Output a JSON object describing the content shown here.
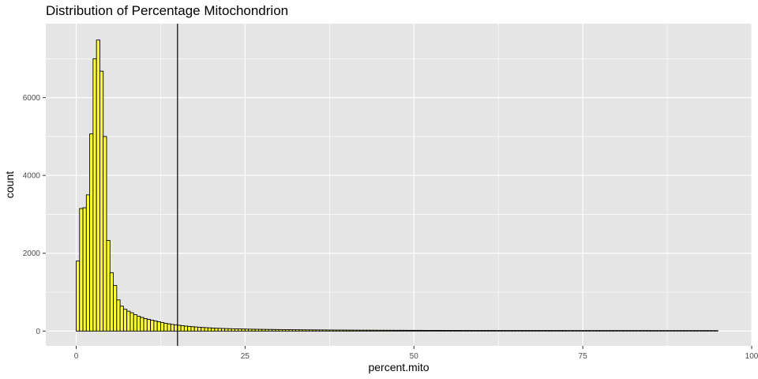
{
  "chart_data": {
    "type": "bar",
    "title": "Distribution of Percentage Mitochondrion",
    "xlabel": "percent.mito",
    "ylabel": "count",
    "xlim": [
      -4.5,
      100
    ],
    "ylim": [
      -380,
      7900
    ],
    "x_ticks": [
      0,
      25,
      50,
      75,
      100
    ],
    "x_tick_labels": [
      "0",
      "25",
      "50",
      "75",
      "100"
    ],
    "y_ticks": [
      0,
      2000,
      4000,
      6000
    ],
    "y_tick_labels": [
      "0",
      "2000",
      "4000",
      "6000"
    ],
    "bin_width": 0.5,
    "bins_start": [
      0,
      0.5,
      1,
      1.5,
      2,
      2.5,
      3,
      3.5,
      4,
      4.5,
      5,
      5.5,
      6,
      6.5,
      7,
      7.5,
      8,
      8.5,
      9,
      9.5,
      10,
      10.5,
      11,
      11.5,
      12,
      12.5,
      13,
      13.5,
      14,
      14.5,
      15,
      15.5,
      16,
      16.5,
      17,
      17.5,
      18,
      18.5,
      19,
      19.5,
      20,
      20.5,
      21,
      21.5,
      22,
      22.5,
      23,
      23.5,
      24,
      24.5,
      25,
      25.5,
      26,
      26.5,
      27,
      27.5,
      28,
      28.5,
      29,
      29.5,
      30,
      30.5,
      31,
      31.5,
      32,
      32.5,
      33,
      33.5,
      34,
      34.5,
      35,
      35.5,
      36,
      36.5,
      37,
      37.5,
      38,
      38.5,
      39,
      39.5,
      40,
      40.5,
      41,
      41.5,
      42,
      42.5,
      43,
      43.5,
      44,
      44.5,
      45,
      45.5,
      46,
      46.5,
      47,
      47.5,
      48,
      48.5,
      49,
      49.5,
      50,
      50.5,
      51,
      51.5,
      52,
      52.5,
      53,
      53.5,
      54,
      54.5,
      55,
      55.5,
      56,
      56.5,
      57,
      57.5,
      58,
      58.5,
      59,
      59.5,
      60,
      60.5,
      61,
      61.5,
      62,
      62.5,
      63,
      63.5,
      64,
      64.5,
      65,
      65.5,
      66,
      66.5,
      67,
      67.5,
      68,
      68.5,
      69,
      69.5,
      70,
      70.5,
      71,
      71.5,
      72,
      72.5,
      73,
      73.5,
      74,
      74.5,
      75,
      75.5,
      76,
      76.5,
      77,
      77.5,
      78,
      78.5,
      79,
      79.5,
      80,
      80.5,
      81,
      81.5,
      82,
      82.5,
      83,
      83.5,
      84,
      84.5,
      85,
      85.5,
      86,
      86.5,
      87,
      87.5,
      88,
      88.5,
      89,
      89.5,
      90,
      90.5,
      91,
      91.5,
      92,
      92.5,
      93,
      93.5,
      94,
      94.5
    ],
    "values": [
      1800,
      3150,
      3170,
      3500,
      5070,
      7000,
      7480,
      6680,
      5000,
      2330,
      1500,
      1170,
      800,
      640,
      560,
      510,
      470,
      420,
      380,
      350,
      320,
      300,
      280,
      260,
      240,
      220,
      200,
      185,
      170,
      160,
      148,
      138,
      128,
      120,
      112,
      105,
      98,
      92,
      87,
      82,
      77,
      73,
      69,
      66,
      63,
      60,
      58,
      56,
      54,
      52,
      50,
      48,
      47,
      45,
      44,
      43,
      42,
      41,
      40,
      39,
      38,
      37,
      36,
      35,
      34,
      33,
      32,
      31,
      30,
      30,
      29,
      29,
      28,
      28,
      27,
      27,
      26,
      26,
      25,
      25,
      24,
      24,
      23,
      23,
      22,
      22,
      22,
      21,
      21,
      21,
      20,
      20,
      20,
      20,
      19,
      19,
      19,
      19,
      18,
      18,
      18,
      18,
      18,
      17,
      17,
      17,
      17,
      17,
      16,
      16,
      16,
      16,
      16,
      16,
      15,
      15,
      15,
      15,
      15,
      15,
      15,
      15,
      15,
      15,
      14,
      14,
      14,
      14,
      14,
      14,
      14,
      14,
      14,
      14,
      14,
      14,
      14,
      14,
      14,
      14,
      14,
      14,
      14,
      14,
      14,
      13,
      13,
      13,
      13,
      13,
      13,
      13,
      13,
      13,
      13,
      13,
      13,
      13,
      13,
      13,
      13,
      13,
      13,
      13,
      13,
      13,
      13,
      13,
      13,
      13,
      12,
      12,
      12,
      12,
      12,
      12,
      12,
      12,
      12,
      12,
      12,
      12,
      12,
      12,
      12,
      12,
      12,
      12,
      11,
      11
    ],
    "vline_x": 15,
    "bar_fill": "#ffff33",
    "bar_stroke": "#000000",
    "panel_background": "#e5e5e5",
    "grid_color": "#ffffff",
    "grid": true
  }
}
